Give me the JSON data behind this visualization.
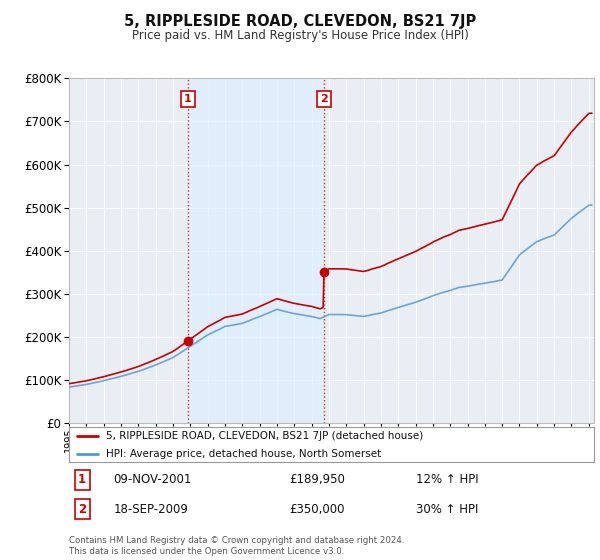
{
  "title": "5, RIPPLESIDE ROAD, CLEVEDON, BS21 7JP",
  "subtitle": "Price paid vs. HM Land Registry's House Price Index (HPI)",
  "legend_line1": "5, RIPPLESIDE ROAD, CLEVEDON, BS21 7JP (detached house)",
  "legend_line2": "HPI: Average price, detached house, North Somerset",
  "sale1_label": "1",
  "sale1_date": "09-NOV-2001",
  "sale1_price": "£189,950",
  "sale1_hpi": "12% ↑ HPI",
  "sale1_x": 2001.86,
  "sale1_y": 189950,
  "sale2_label": "2",
  "sale2_date": "18-SEP-2009",
  "sale2_price": "£350,000",
  "sale2_hpi": "30% ↑ HPI",
  "sale2_x": 2009.72,
  "sale2_y": 350000,
  "footer": "Contains HM Land Registry data © Crown copyright and database right 2024.\nThis data is licensed under the Open Government Licence v3.0.",
  "red_color": "#cc0000",
  "blue_color": "#5599cc",
  "shade_color": "#ddeeff",
  "dashed_color": "#cc3333",
  "background_color": "#ffffff",
  "plot_bg_color": "#e8eef4",
  "grid_color": "#ffffff",
  "ylim": [
    0,
    800000
  ],
  "xlim_start": 1995.0,
  "xlim_end": 2025.3
}
